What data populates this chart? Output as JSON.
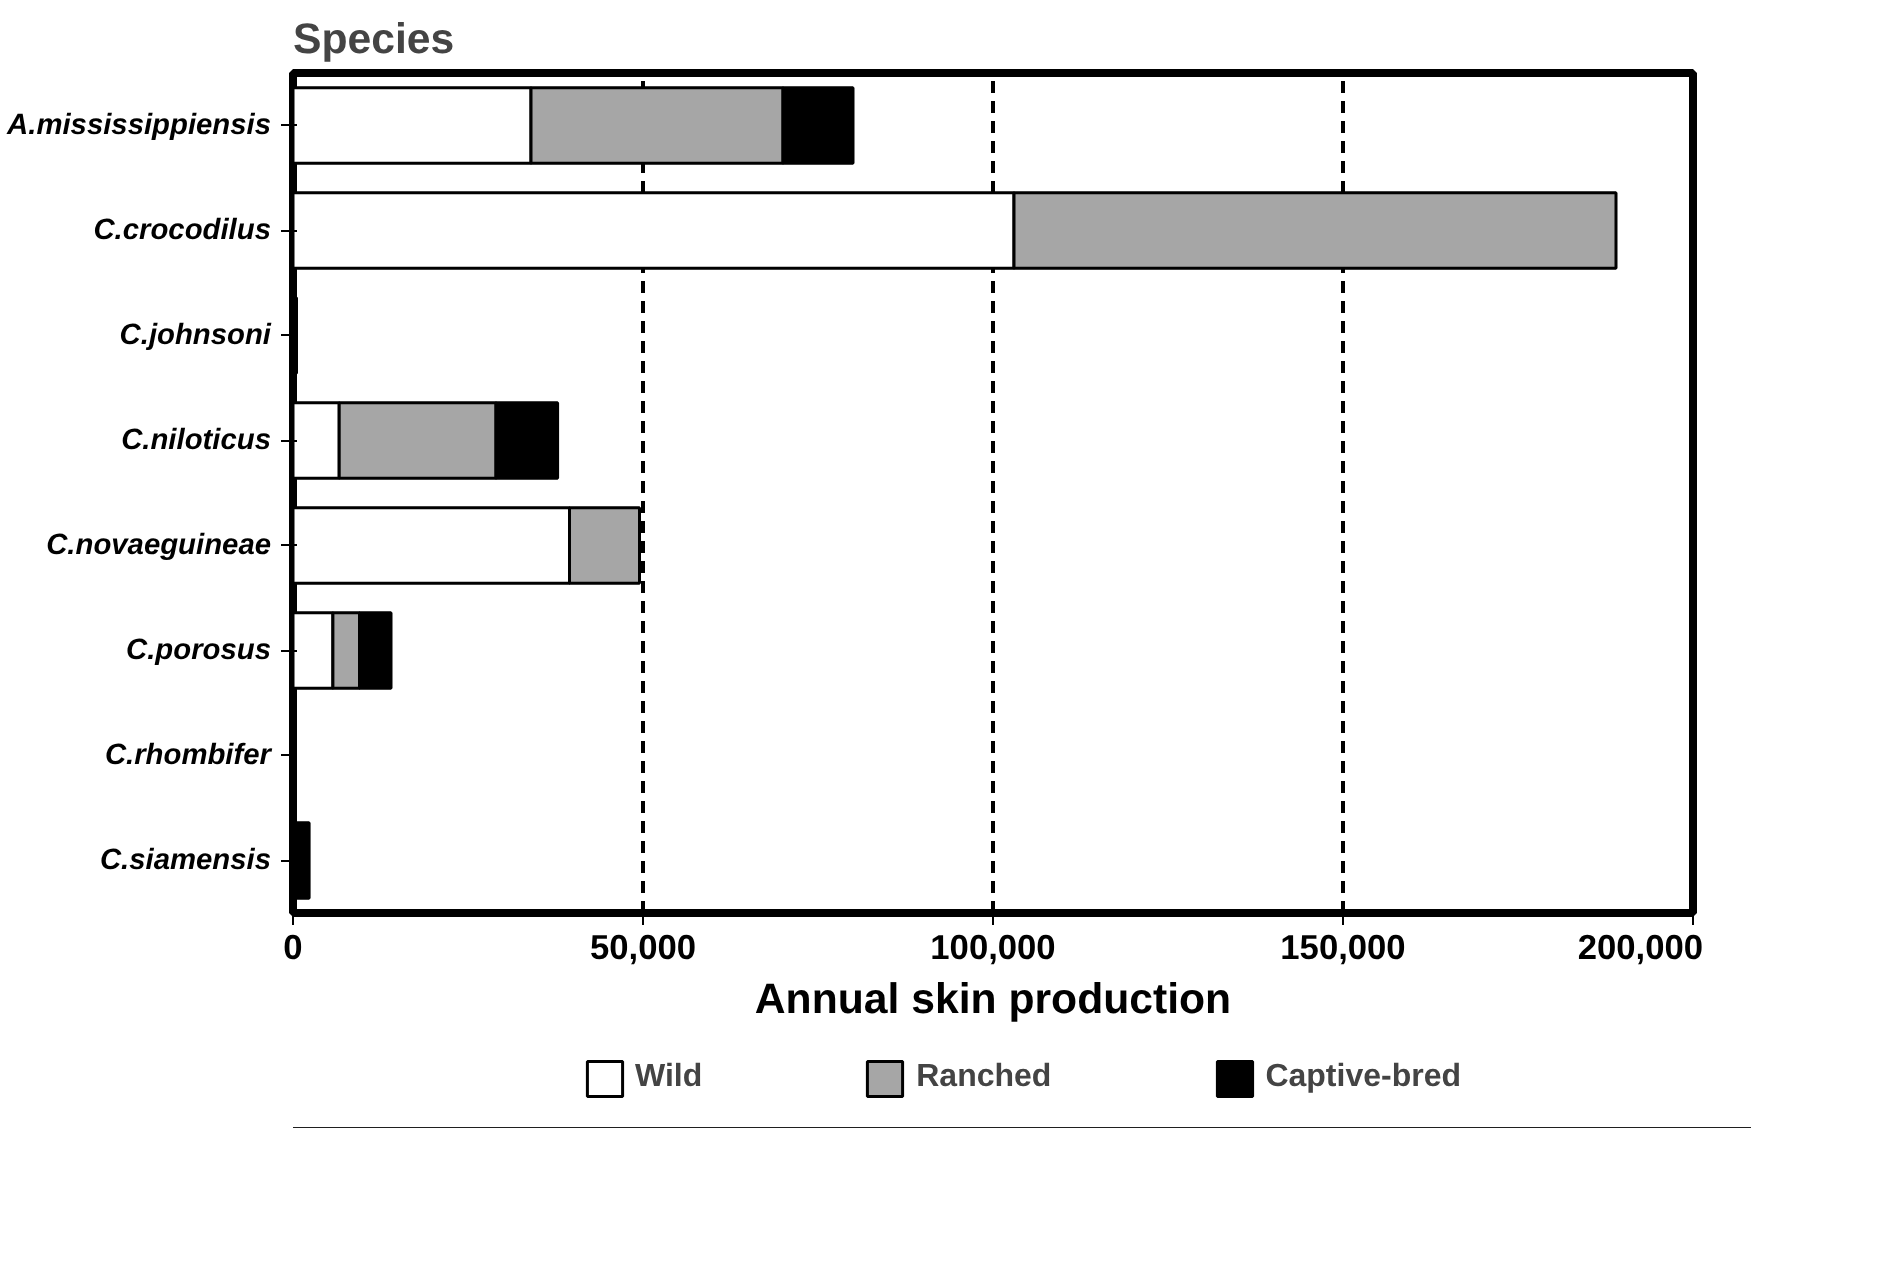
{
  "chart_data": {
    "type": "bar",
    "orientation": "horizontal",
    "stacked": true,
    "ylabel": "Species",
    "xlabel": "Annual skin production",
    "categories": [
      "A.mississippiensis",
      "C.crocodilus",
      "C.johnsoni",
      "C.niloticus",
      "C.novaeguineae",
      "C.porosus",
      "C.rhombifer",
      "C.siamensis"
    ],
    "series": [
      {
        "name": "Wild",
        "color": "#ffffff",
        "values": [
          34000,
          103000,
          0,
          6600,
          39500,
          5700,
          0,
          0
        ]
      },
      {
        "name": "Ranched",
        "color": "#a6a6a6",
        "values": [
          36000,
          86000,
          0,
          22400,
          10000,
          3800,
          0,
          0
        ]
      },
      {
        "name": "Captive-bred",
        "color": "#000000",
        "values": [
          10000,
          0,
          500,
          8800,
          0,
          4500,
          0,
          2300
        ]
      }
    ],
    "xlim": [
      0,
      200000
    ],
    "xticks": [
      {
        "value": 0,
        "label": "0"
      },
      {
        "value": 50000,
        "label": "50,000"
      },
      {
        "value": 100000,
        "label": "100,000"
      },
      {
        "value": 150000,
        "label": "150,000"
      },
      {
        "value": 200000,
        "label": "200,000"
      }
    ],
    "grid": "x",
    "legend": "bottom"
  }
}
